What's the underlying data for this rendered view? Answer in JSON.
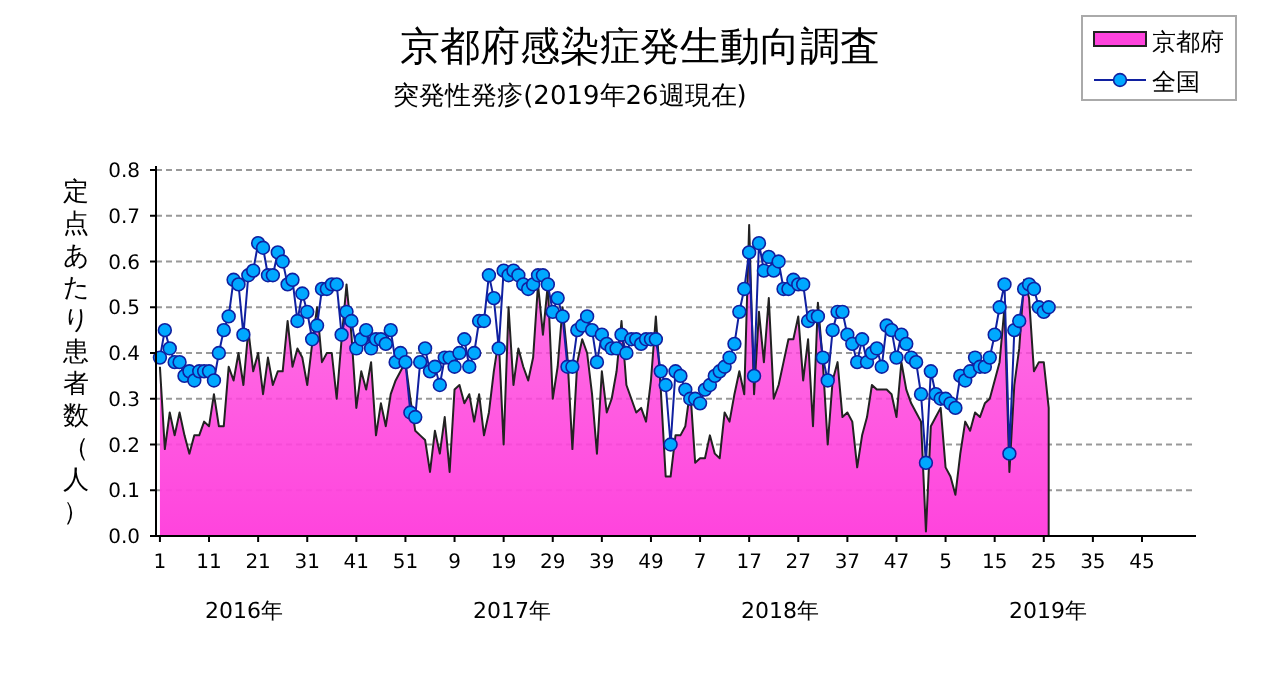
{
  "chart_data": {
    "type": "area",
    "title": "京都府感染症発生動向調査",
    "subtitle": "突発性発疹(2019年26週現在)",
    "ylabel": "定点あたり患者数（人）",
    "categories": [
      "1",
      null,
      null,
      null,
      null,
      null,
      null,
      null,
      null,
      null,
      "11",
      null,
      null,
      null,
      null,
      null,
      null,
      null,
      null,
      null,
      "21",
      null,
      null,
      null,
      null,
      null,
      null,
      null,
      null,
      null,
      "31",
      null,
      null,
      null,
      null,
      null,
      null,
      null,
      null,
      null,
      "41",
      null,
      null,
      null,
      null,
      null,
      null,
      null,
      null,
      null,
      "51",
      null,
      null,
      null,
      null,
      null,
      null,
      null,
      null,
      null,
      "9",
      null,
      null,
      null,
      null,
      null,
      null,
      null,
      null,
      null,
      "19",
      null,
      null,
      null,
      null,
      null,
      null,
      null,
      null,
      null,
      "29",
      null,
      null,
      null,
      null,
      null,
      null,
      null,
      null,
      null,
      "39",
      null,
      null,
      null,
      null,
      null,
      null,
      null,
      null,
      null,
      "49",
      null,
      null,
      null,
      null,
      null,
      null,
      null,
      null,
      null,
      "7",
      null,
      null,
      null,
      null,
      null,
      null,
      null,
      null,
      null,
      "17",
      null,
      null,
      null,
      null,
      null,
      null,
      null,
      null,
      null,
      "27",
      null,
      null,
      null,
      null,
      null,
      null,
      null,
      null,
      null,
      "37",
      null,
      null,
      null,
      null,
      null,
      null,
      null,
      null,
      null,
      "47",
      null,
      null,
      null,
      null,
      null,
      null,
      null,
      null,
      null,
      "5",
      null,
      null,
      null,
      null,
      null,
      null,
      null,
      null,
      null,
      "15",
      null,
      null,
      null,
      null,
      null,
      null,
      null,
      null,
      null,
      "25",
      null,
      null,
      null,
      null,
      null,
      null,
      null,
      null,
      null,
      "35",
      null,
      null,
      null,
      null,
      null,
      null,
      null,
      null,
      null,
      "45",
      null,
      null,
      null,
      null,
      null,
      null,
      null,
      null,
      null,
      null
    ],
    "ylim": [
      0,
      0.8
    ],
    "yticks": [
      {
        "value": 0,
        "label": "0.0"
      },
      {
        "value": 0.1,
        "label": "0.1"
      },
      {
        "value": 0.2,
        "label": "0.2"
      },
      {
        "value": 0.3,
        "label": "0.3"
      },
      {
        "value": 0.4,
        "label": "0.4"
      },
      {
        "value": 0.5,
        "label": "0.5"
      },
      {
        "value": 0.6,
        "label": "0.6"
      },
      {
        "value": 0.7,
        "label": "0.7"
      },
      {
        "value": 0.8,
        "label": "0.8"
      }
    ],
    "grid": "y",
    "legend": "top right",
    "annotations": [
      "2016年",
      "2017年",
      "2018年",
      "2019年"
    ],
    "series": [
      {
        "name": "京都府",
        "type": "area",
        "color": "#ff44dd",
        "values": [
          0.37,
          0.19,
          0.27,
          0.22,
          0.27,
          0.22,
          0.18,
          0.22,
          0.22,
          0.25,
          0.24,
          0.31,
          0.24,
          0.24,
          0.37,
          0.34,
          0.4,
          0.33,
          0.45,
          0.36,
          0.4,
          0.31,
          0.39,
          0.33,
          0.36,
          0.36,
          0.47,
          0.37,
          0.41,
          0.39,
          0.33,
          0.42,
          0.5,
          0.38,
          0.4,
          0.4,
          0.3,
          0.43,
          0.55,
          0.44,
          0.28,
          0.36,
          0.32,
          0.38,
          0.22,
          0.29,
          0.24,
          0.31,
          0.34,
          0.36,
          0.38,
          0.3,
          0.23,
          0.22,
          0.21,
          0.14,
          0.23,
          0.18,
          0.26,
          0.14,
          0.32,
          0.33,
          0.29,
          0.31,
          0.25,
          0.31,
          0.22,
          0.27,
          0.36,
          0.43,
          0.2,
          0.5,
          0.33,
          0.41,
          0.37,
          0.34,
          0.39,
          0.55,
          0.44,
          0.55,
          0.3,
          0.37,
          0.5,
          0.39,
          0.19,
          0.38,
          0.43,
          0.4,
          0.31,
          0.18,
          0.36,
          0.27,
          0.3,
          0.36,
          0.47,
          0.33,
          0.3,
          0.27,
          0.28,
          0.25,
          0.34,
          0.48,
          0.32,
          0.13,
          0.13,
          0.22,
          0.22,
          0.24,
          0.32,
          0.16,
          0.17,
          0.17,
          0.22,
          0.18,
          0.17,
          0.27,
          0.25,
          0.31,
          0.36,
          0.31,
          0.68,
          0.31,
          0.49,
          0.38,
          0.52,
          0.3,
          0.33,
          0.38,
          0.43,
          0.43,
          0.48,
          0.34,
          0.43,
          0.24,
          0.51,
          0.38,
          0.2,
          0.34,
          0.38,
          0.26,
          0.27,
          0.25,
          0.15,
          0.22,
          0.26,
          0.33,
          0.32,
          0.32,
          0.32,
          0.31,
          0.26,
          0.38,
          0.32,
          0.29,
          0.27,
          0.25,
          0.01,
          0.24,
          0.26,
          0.28,
          0.15,
          0.13,
          0.09,
          0.18,
          0.25,
          0.23,
          0.27,
          0.26,
          0.29,
          0.3,
          0.34,
          0.38,
          0.5,
          0.14,
          0.33,
          0.41,
          0.56,
          0.52,
          0.36,
          0.38,
          0.38,
          0.28,
          null,
          null,
          null,
          null,
          null,
          null,
          null,
          null,
          null,
          null,
          null,
          null,
          null,
          null,
          null,
          null,
          null,
          null,
          null,
          null,
          null,
          null,
          null,
          null,
          null,
          null,
          null,
          null,
          null
        ]
      },
      {
        "name": "全国",
        "type": "line",
        "color": "#00a8ff",
        "marker": "circle",
        "values": [
          0.39,
          0.45,
          0.41,
          0.38,
          0.38,
          0.35,
          0.36,
          0.34,
          0.36,
          0.36,
          0.36,
          0.34,
          0.4,
          0.45,
          0.48,
          0.56,
          0.55,
          0.44,
          0.57,
          0.58,
          0.64,
          0.63,
          0.57,
          0.57,
          0.62,
          0.6,
          0.55,
          0.56,
          0.47,
          0.53,
          0.49,
          0.43,
          0.46,
          0.54,
          0.54,
          0.55,
          0.55,
          0.44,
          0.49,
          0.47,
          0.41,
          0.43,
          0.45,
          0.41,
          0.43,
          0.43,
          0.42,
          0.45,
          0.38,
          0.4,
          0.38,
          0.27,
          0.26,
          0.38,
          0.41,
          0.36,
          0.37,
          0.33,
          0.39,
          0.39,
          0.37,
          0.4,
          0.43,
          0.37,
          0.4,
          0.47,
          0.47,
          0.57,
          0.52,
          0.41,
          0.58,
          0.57,
          0.58,
          0.57,
          0.55,
          0.54,
          0.55,
          0.57,
          0.57,
          0.55,
          0.49,
          0.52,
          0.48,
          0.37,
          0.37,
          0.45,
          0.46,
          0.48,
          0.45,
          0.38,
          0.44,
          0.42,
          0.41,
          0.41,
          0.44,
          0.4,
          0.43,
          0.43,
          0.42,
          0.43,
          0.43,
          0.43,
          0.36,
          0.33,
          0.2,
          0.36,
          0.35,
          0.32,
          0.3,
          0.3,
          0.29,
          0.32,
          0.33,
          0.35,
          0.36,
          0.37,
          0.39,
          0.42,
          0.49,
          0.54,
          0.62,
          0.35,
          0.64,
          0.58,
          0.61,
          0.58,
          0.6,
          0.54,
          0.54,
          0.56,
          0.55,
          0.55,
          0.47,
          0.48,
          0.48,
          0.39,
          0.34,
          0.45,
          0.49,
          0.49,
          0.44,
          0.42,
          0.38,
          0.43,
          0.38,
          0.4,
          0.41,
          0.37,
          0.46,
          0.45,
          0.39,
          0.44,
          0.42,
          0.39,
          0.38,
          0.31,
          0.16,
          0.36,
          0.31,
          0.3,
          0.3,
          0.29,
          0.28,
          0.35,
          0.34,
          0.36,
          0.39,
          0.37,
          0.37,
          0.39,
          0.44,
          0.5,
          0.55,
          0.18,
          0.45,
          0.47,
          0.54,
          0.55,
          0.54,
          0.5,
          0.49,
          0.5,
          null,
          null,
          null,
          null,
          null,
          null,
          null,
          null,
          null,
          null,
          null,
          null,
          null,
          null,
          null,
          null,
          null,
          null,
          null,
          null,
          null,
          null,
          null,
          null,
          null,
          null,
          null,
          null,
          null
        ]
      }
    ]
  }
}
